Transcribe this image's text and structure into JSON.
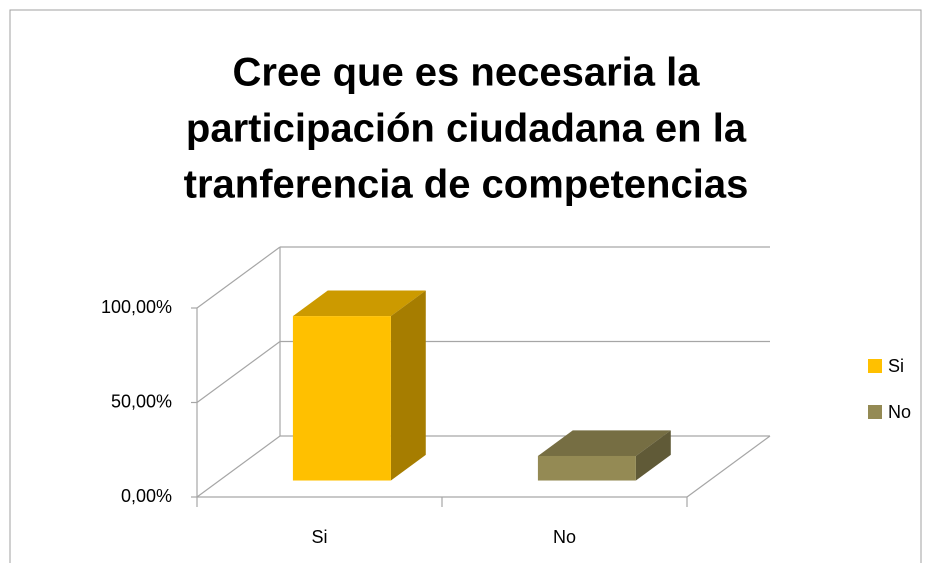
{
  "chart_data": {
    "type": "bar3d",
    "title": [
      "Cree que es necesaria la",
      "participación ciudadana en la",
      "tranferencia de competencias"
    ],
    "categories": [
      "Si",
      "No"
    ],
    "values": [
      87,
      13
    ],
    "colors": [
      "#ffc000",
      "#948a54"
    ],
    "ylim": [
      0,
      100
    ],
    "yticks": [
      {
        "value": 0,
        "label": "0,00%"
      },
      {
        "value": 50,
        "label": "50,00%"
      },
      {
        "value": 100,
        "label": "100,00%"
      }
    ],
    "grid": true,
    "legend": "right"
  }
}
